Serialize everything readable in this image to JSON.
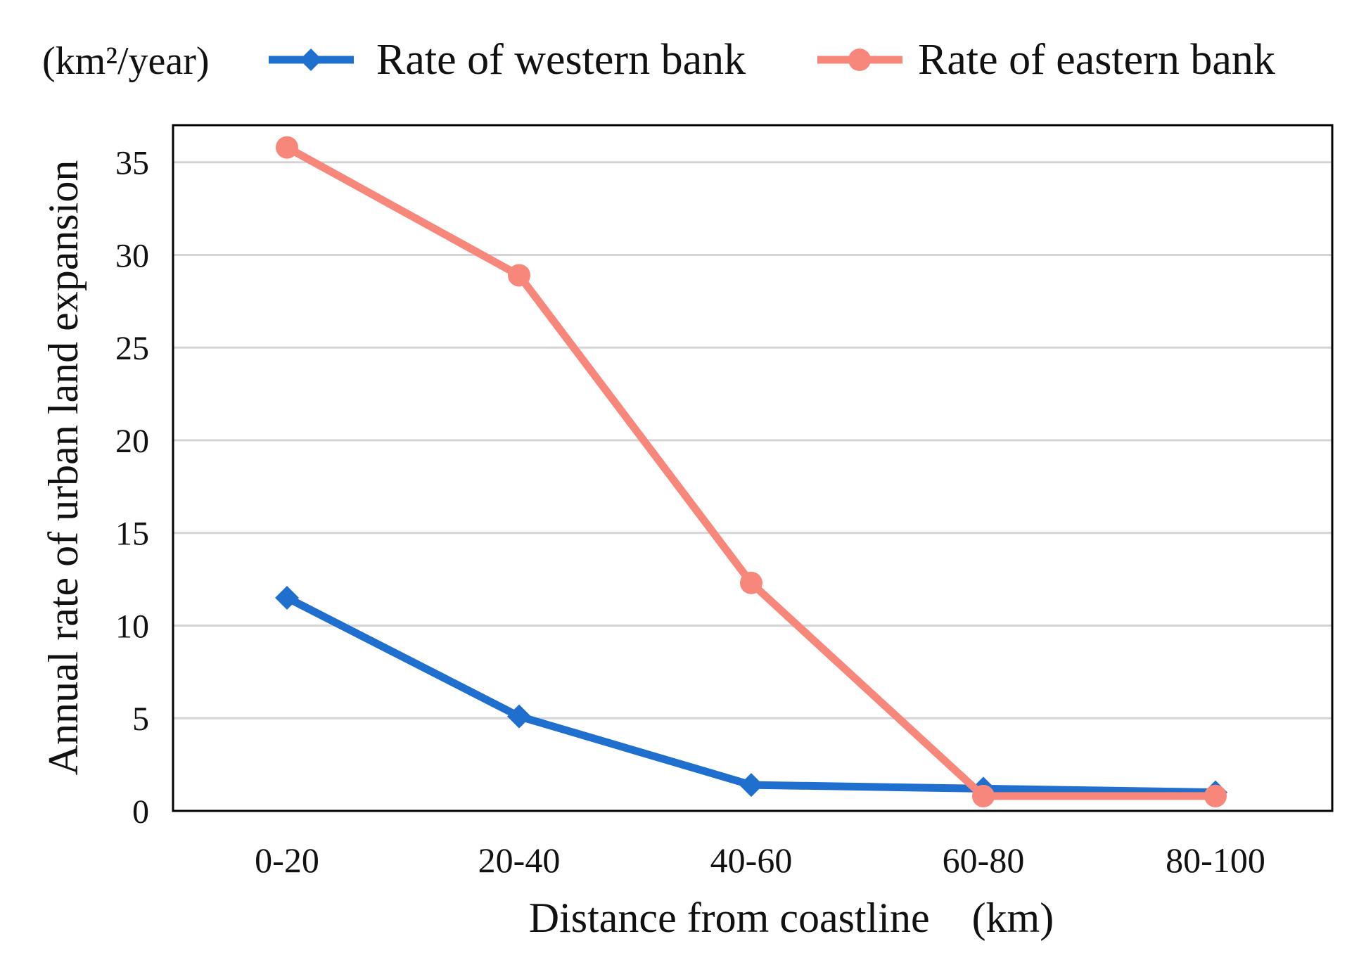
{
  "chart_data": {
    "type": "line",
    "title": "",
    "unit_label": "(km²/year)",
    "categories": [
      "0-20",
      "20-40",
      "40-60",
      "60-80",
      "80-100"
    ],
    "series": [
      {
        "name": "Rate of western bank",
        "color": "#1f6fce",
        "marker": "diamond",
        "values": [
          11.5,
          5.1,
          1.4,
          1.2,
          1.0
        ]
      },
      {
        "name": "Rate of eastern bank",
        "color": "#f8877b",
        "marker": "circle",
        "values": [
          35.8,
          28.9,
          12.3,
          0.8,
          0.8
        ]
      }
    ],
    "xlabel": "Distance from coastline　(km)",
    "ylabel": "Annual rate of urban land expansion",
    "ylim": [
      0,
      37
    ],
    "yticks": [
      0,
      5,
      10,
      15,
      20,
      25,
      30,
      35
    ],
    "grid": true,
    "legend_position": "top"
  }
}
